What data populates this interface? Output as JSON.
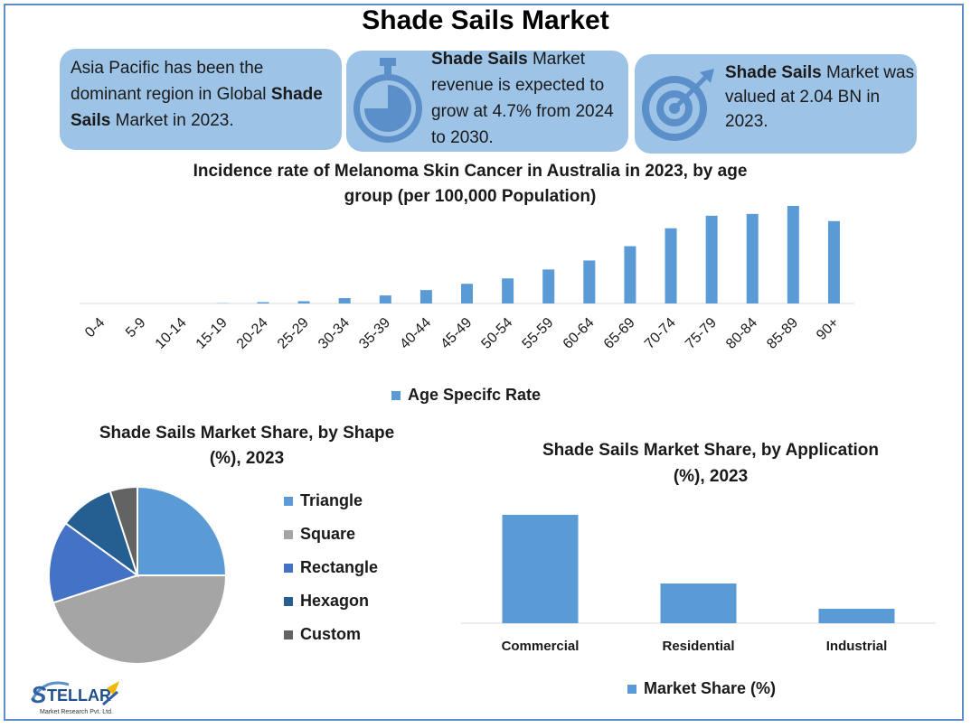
{
  "title": "Shade Sails Market",
  "cards": {
    "card1": {
      "t1": "Asia Pacific has been the dominant region in Global ",
      "bold": "Shade Sails",
      "t2": " Market in 2023."
    },
    "card2": {
      "bold": "Shade Sails",
      "t2": " Market revenue is expected to grow at 4.7% from 2024 to 2030.",
      "icon": "stopwatch-icon"
    },
    "card3": {
      "bold": "Shade Sails",
      "t2": " Market was valued at 2.04 BN in 2023.",
      "icon": "target-icon"
    }
  },
  "logo": {
    "name": "STELLAR",
    "tagline": "Market Research Pvt. Ltd."
  },
  "colors": {
    "accent": "#5b9bd5",
    "card": "#9dc3e6",
    "border": "#5b8fc9"
  },
  "chart_data": [
    {
      "type": "bar",
      "title": "Incidence rate of Melanoma Skin Cancer in Australia in 2023, by age group (per 100,000 Population)",
      "title_lines": [
        "Incidence rate of Melanoma Skin Cancer in Australia in 2023, by age",
        "group (per 100,000 Population)"
      ],
      "categories": [
        "0-4",
        "5-9",
        "10-14",
        "15-19",
        "20-24",
        "25-29",
        "30-34",
        "35-39",
        "40-44",
        "45-49",
        "50-54",
        "55-59",
        "60-64",
        "65-69",
        "70-74",
        "75-79",
        "80-84",
        "85-89",
        "90+"
      ],
      "series": [
        {
          "name": "Age Specifc Rate",
          "values": [
            0,
            0,
            0,
            0.3,
            1.5,
            2.5,
            6,
            9,
            15,
            22,
            28,
            38,
            48,
            64,
            84,
            98,
            100,
            109,
            92
          ]
        }
      ],
      "ylim": [
        0,
        115
      ],
      "legend": "bottom"
    },
    {
      "type": "pie",
      "title": "Shade Sails Market Share, by Shape (%), 2023",
      "title_lines": [
        "Shade Sails Market Share, by Shape",
        "(%), 2023"
      ],
      "labels": [
        "Triangle",
        "Square",
        "Rectangle",
        "Hexagon",
        "Custom"
      ],
      "values": [
        25,
        45,
        15,
        10,
        5
      ],
      "colors": [
        "#5b9bd5",
        "#a5a5a5",
        "#4472c4",
        "#255e91",
        "#636363"
      ],
      "legend": "right"
    },
    {
      "type": "bar",
      "title": "Shade Sails Market Share, by Application (%), 2023",
      "title_lines": [
        "Shade Sails Market Share, by Application",
        "(%), 2023"
      ],
      "categories": [
        "Commercial",
        "Residential",
        "Industrial"
      ],
      "series": [
        {
          "name": "Market Share (%)",
          "values": [
            60,
            22,
            8
          ]
        }
      ],
      "ylim": [
        0,
        65
      ],
      "legend": "bottom"
    }
  ]
}
